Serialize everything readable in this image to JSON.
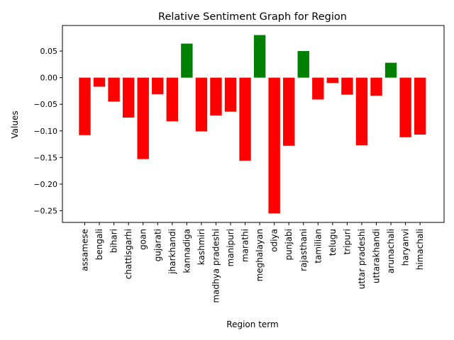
{
  "colors": {
    "positive": "#008000",
    "negative": "#ff0000",
    "axis": "#000000",
    "background": "#ffffff"
  },
  "chart_data": {
    "type": "bar",
    "title": "Relative Sentiment Graph for Region",
    "xlabel": "Region term",
    "ylabel": "Values",
    "ylim": [
      -0.272,
      0.098
    ],
    "yticks": [
      0.05,
      0.0,
      -0.05,
      -0.1,
      -0.15,
      -0.2,
      -0.25
    ],
    "ytick_labels": [
      "0.05",
      "0.00",
      "−0.05",
      "−0.10",
      "−0.15",
      "−0.20",
      "−0.25"
    ],
    "grid": false,
    "legend": "none",
    "color_rule": "green if value > 0, red otherwise",
    "categories": [
      "assamese",
      "bengali",
      "bihari",
      "chattisgarhi",
      "goan",
      "gujarati",
      "jharkhandi",
      "kannadiga",
      "kashmiri",
      "madhya pradeshi",
      "manipuri",
      "marathi",
      "meghalayan",
      "odiya",
      "punjabi",
      "rajasthani",
      "tamilian",
      "telugu",
      "tripuri",
      "uttar pradeshi",
      "uttarakhandi",
      "arunachali",
      "haryanvi",
      "himachali"
    ],
    "values": [
      -0.108,
      -0.017,
      -0.045,
      -0.075,
      -0.153,
      -0.031,
      -0.082,
      0.064,
      -0.101,
      -0.071,
      -0.064,
      -0.156,
      0.08,
      -0.255,
      -0.128,
      0.05,
      -0.041,
      -0.01,
      -0.032,
      -0.127,
      -0.034,
      0.028,
      -0.112,
      -0.107
    ]
  }
}
